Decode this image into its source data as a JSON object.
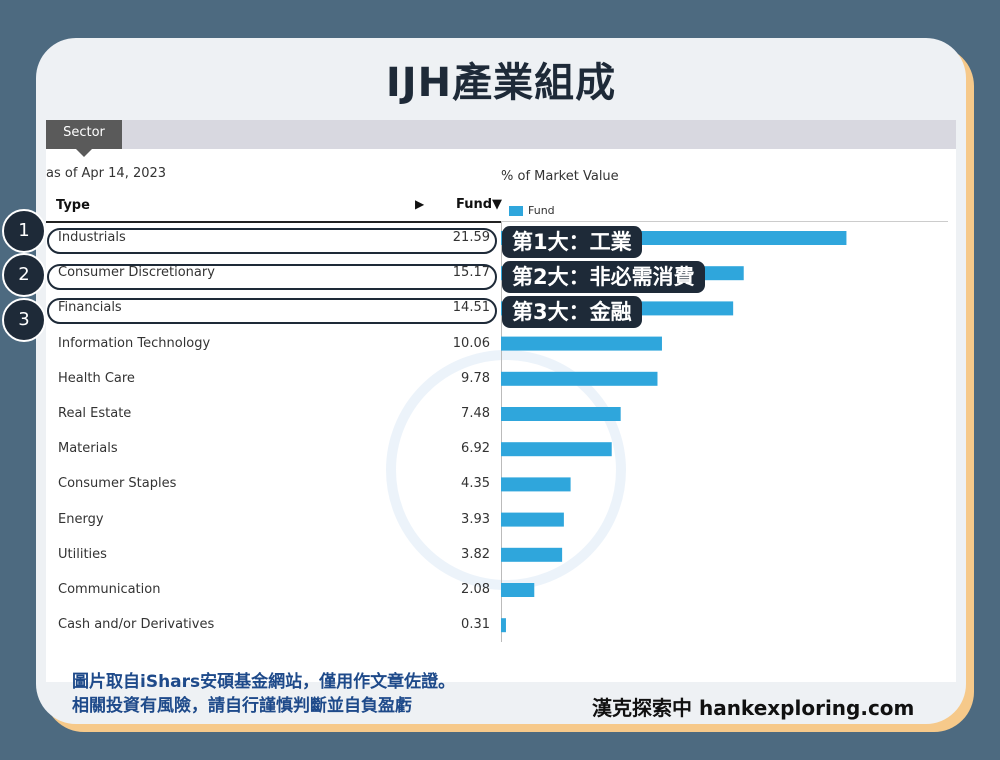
{
  "title": "IJH產業組成",
  "tab_label": "Sector",
  "as_of": "as of Apr 14, 2023",
  "header": {
    "type_label": "Type",
    "sort_arrow": "▶",
    "fund_label": "Fund▼",
    "pct_label": "% of Market Value",
    "legend_label": "Fund"
  },
  "colors": {
    "bar": "#2fa6dc",
    "accent_dark": "#1e2a38",
    "frame": "#f6c98a",
    "background": "#4d6a80"
  },
  "chart_data": {
    "type": "bar",
    "orientation": "horizontal",
    "categories": [
      "Industrials",
      "Consumer Discretionary",
      "Financials",
      "Information Technology",
      "Health Care",
      "Real Estate",
      "Materials",
      "Consumer Staples",
      "Energy",
      "Utilities",
      "Communication",
      "Cash and/or Derivatives"
    ],
    "values": [
      "21.59",
      "15.17",
      "14.51",
      "10.06",
      "9.78",
      "7.48",
      "6.92",
      "4.35",
      "3.93",
      "3.82",
      "2.08",
      "0.31"
    ],
    "series": [
      {
        "name": "Fund"
      }
    ],
    "xlim": [
      0,
      25
    ]
  },
  "highlights": [
    {
      "number": "1",
      "text": "第1大：工業"
    },
    {
      "number": "2",
      "text": "第2大：非必需消費"
    },
    {
      "number": "3",
      "text": "第3大：金融"
    }
  ],
  "footer": {
    "line1": "圖片取自iShars安碩基金網站，僅用作文章佐證。",
    "line2": "相關投資有風險，請自行謹慎判斷並自負盈虧",
    "brand": "漢克探索中 hankexploring.com"
  }
}
